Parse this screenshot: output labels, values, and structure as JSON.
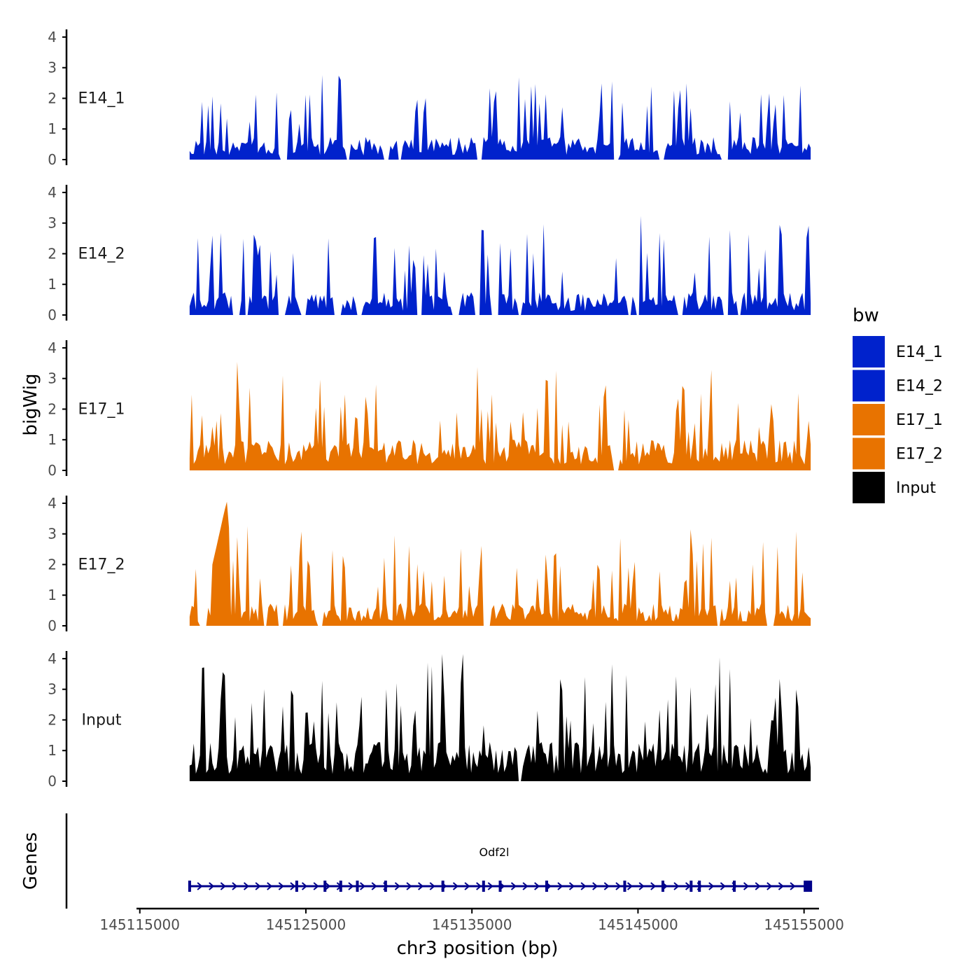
{
  "chart_data": {
    "type": "area",
    "ylabel": "bigWig",
    "xlabel": "chr3 position (bp)",
    "x_range": [
      145118000,
      145155400
    ],
    "xlim": [
      145114800,
      145155900
    ],
    "ylim": [
      0,
      4.25
    ],
    "y_ticks": [
      0,
      1,
      2,
      3,
      4
    ],
    "x_ticks": [
      145115000,
      145125000,
      145135000,
      145145000,
      145155000
    ],
    "x_tick_labels": [
      "145115000",
      "145125000",
      "145135000",
      "145145000",
      "145155000"
    ],
    "tracks": [
      {
        "name": "E14_1",
        "label": "E14_1",
        "color": "#0022CC",
        "seed": 11,
        "base": 0.55,
        "peak": 2.2,
        "gap_rate": 0.09
      },
      {
        "name": "E14_2",
        "label": "E14_2",
        "color": "#0022CC",
        "seed": 27,
        "base": 0.55,
        "peak": 2.5,
        "gap_rate": 0.11
      },
      {
        "name": "E17_1",
        "label": "E17_1",
        "color": "#E87300",
        "seed": 43,
        "base": 0.75,
        "peak": 2.4,
        "gap_rate": 0.02
      },
      {
        "name": "E17_2",
        "label": "E17_2",
        "color": "#E87300",
        "seed": 59,
        "base": 0.55,
        "peak": 2.5,
        "gap_rate": 0.06
      },
      {
        "name": "Input",
        "label": "Input",
        "color": "#000000",
        "seed": 71,
        "base": 0.95,
        "peak": 3.0,
        "gap_rate": 0.01
      }
    ],
    "legend": {
      "title": "bw",
      "position": "right",
      "entries": [
        {
          "label": "E14_1",
          "color": "#0022CC"
        },
        {
          "label": "E14_2",
          "color": "#0022CC"
        },
        {
          "label": "E17_1",
          "color": "#E87300"
        },
        {
          "label": "E17_2",
          "color": "#E87300"
        },
        {
          "label": "Input",
          "color": "#000000"
        }
      ]
    },
    "genes_track": {
      "ylabel": "Genes",
      "gene_name": "Odf2l",
      "gene_color": "#00008B",
      "strand": "+",
      "start": 145118000,
      "end": 145155400,
      "exons": [
        145118000,
        145124450,
        145126150,
        145127100,
        145128100,
        145129800,
        145133250,
        145135700,
        145136700,
        145139500,
        145144200,
        145146500,
        145148200,
        145148700,
        145150800,
        145155400
      ]
    }
  }
}
